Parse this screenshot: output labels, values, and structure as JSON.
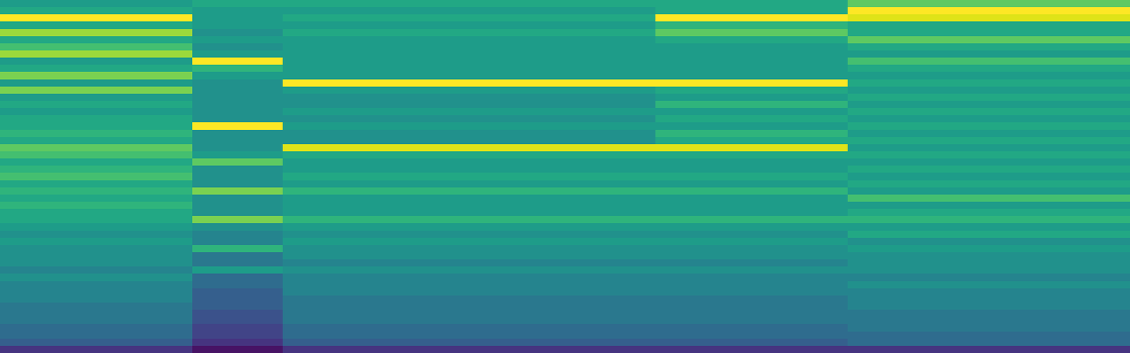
{
  "chart_data": {
    "type": "heatmap",
    "color": "viridis",
    "tick_labels": false,
    "value_range": [
      0,
      1
    ],
    "xlim": [
      0,
      100
    ],
    "ylim": [
      49,
      0
    ],
    "x_edges": [
      0,
      17,
      25,
      58,
      75,
      100
    ],
    "y_edges": [
      0,
      1,
      2,
      3,
      4,
      5,
      6,
      7,
      8,
      9,
      10,
      11,
      12,
      13,
      14,
      15,
      16,
      17,
      18,
      19,
      20,
      21,
      22,
      23,
      24,
      25,
      26,
      27,
      28,
      29,
      30,
      31,
      32,
      33,
      34,
      35,
      36,
      37,
      38,
      39,
      40,
      41,
      42,
      43,
      44,
      45,
      46,
      47,
      48,
      49
    ],
    "cells": [
      [
        0.55,
        0.6,
        0.6,
        0.6,
        0.75
      ],
      [
        0.6,
        0.55,
        0.55,
        0.6,
        1.0
      ],
      [
        1.0,
        0.55,
        0.6,
        1.0,
        0.95
      ],
      [
        0.6,
        0.55,
        0.55,
        0.65,
        0.6
      ],
      [
        0.85,
        0.5,
        0.6,
        0.75,
        0.6
      ],
      [
        0.6,
        0.55,
        0.55,
        0.6,
        0.75
      ],
      [
        0.7,
        0.5,
        0.55,
        0.55,
        0.6
      ],
      [
        0.85,
        0.55,
        0.55,
        0.55,
        0.55
      ],
      [
        0.55,
        1.0,
        0.55,
        0.55,
        0.7
      ],
      [
        0.6,
        0.65,
        0.55,
        0.55,
        0.6
      ],
      [
        0.8,
        0.55,
        0.55,
        0.55,
        0.55
      ],
      [
        0.55,
        0.5,
        1.0,
        1.0,
        0.6
      ],
      [
        0.8,
        0.5,
        0.55,
        0.6,
        0.55
      ],
      [
        0.55,
        0.5,
        0.5,
        0.55,
        0.6
      ],
      [
        0.6,
        0.5,
        0.5,
        0.65,
        0.55
      ],
      [
        0.55,
        0.5,
        0.55,
        0.55,
        0.6
      ],
      [
        0.6,
        0.5,
        0.5,
        0.6,
        0.55
      ],
      [
        0.6,
        1.0,
        0.55,
        0.55,
        0.6
      ],
      [
        0.65,
        0.5,
        0.5,
        0.65,
        0.55
      ],
      [
        0.6,
        0.5,
        0.5,
        0.6,
        0.6
      ],
      [
        0.75,
        0.5,
        0.95,
        0.95,
        0.55
      ],
      [
        0.7,
        0.55,
        0.6,
        0.6,
        0.6
      ],
      [
        0.6,
        0.75,
        0.55,
        0.55,
        0.55
      ],
      [
        0.65,
        0.5,
        0.55,
        0.55,
        0.6
      ],
      [
        0.7,
        0.5,
        0.6,
        0.6,
        0.55
      ],
      [
        0.6,
        0.5,
        0.55,
        0.55,
        0.6
      ],
      [
        0.65,
        0.8,
        0.65,
        0.65,
        0.55
      ],
      [
        0.6,
        0.5,
        0.55,
        0.55,
        0.7
      ],
      [
        0.65,
        0.5,
        0.55,
        0.55,
        0.55
      ],
      [
        0.6,
        0.5,
        0.55,
        0.55,
        0.6
      ],
      [
        0.6,
        0.8,
        0.65,
        0.65,
        0.65
      ],
      [
        0.55,
        0.5,
        0.55,
        0.55,
        0.55
      ],
      [
        0.5,
        0.45,
        0.5,
        0.5,
        0.6
      ],
      [
        0.55,
        0.45,
        0.55,
        0.55,
        0.5
      ],
      [
        0.5,
        0.65,
        0.5,
        0.5,
        0.55
      ],
      [
        0.5,
        0.4,
        0.5,
        0.5,
        0.5
      ],
      [
        0.5,
        0.4,
        0.45,
        0.45,
        0.5
      ],
      [
        0.45,
        0.55,
        0.5,
        0.5,
        0.5
      ],
      [
        0.5,
        0.35,
        0.45,
        0.45,
        0.45
      ],
      [
        0.45,
        0.35,
        0.45,
        0.45,
        0.5
      ],
      [
        0.45,
        0.3,
        0.45,
        0.45,
        0.45
      ],
      [
        0.45,
        0.3,
        0.4,
        0.4,
        0.45
      ],
      [
        0.4,
        0.3,
        0.4,
        0.4,
        0.45
      ],
      [
        0.4,
        0.25,
        0.4,
        0.4,
        0.4
      ],
      [
        0.4,
        0.25,
        0.4,
        0.4,
        0.4
      ],
      [
        0.35,
        0.2,
        0.35,
        0.35,
        0.4
      ],
      [
        0.35,
        0.2,
        0.35,
        0.35,
        0.35
      ],
      [
        0.3,
        0.15,
        0.3,
        0.3,
        0.35
      ],
      [
        0.15,
        0.05,
        0.15,
        0.15,
        0.15
      ]
    ]
  }
}
